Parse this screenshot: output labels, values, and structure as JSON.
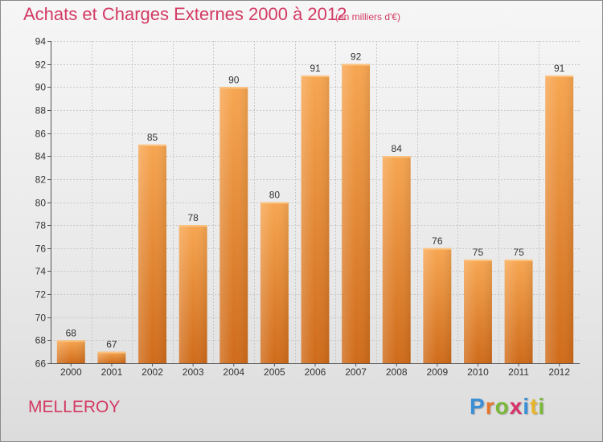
{
  "header": {
    "title": "Achats et Charges Externes 2000 à 2012",
    "subtitle": "(en milliers d'€)"
  },
  "footer": {
    "commune": "MELLEROY",
    "logo_text": "Proxiti",
    "logo_colors": [
      "#3b8fd6",
      "#e8762a",
      "#7ab83a",
      "#d6336c",
      "#3b8fd6",
      "#e8b52a",
      "#7ab83a"
    ]
  },
  "colors": {
    "accent": "#d33a63",
    "bar_top": "#f7a651",
    "bar_bottom": "#cf6b1a",
    "grid": "#c8c8c8"
  },
  "chart_data": {
    "type": "bar",
    "title": "Achats et Charges Externes 2000 à 2012",
    "subtitle": "(en milliers d'€)",
    "categories": [
      "2000",
      "2001",
      "2002",
      "2003",
      "2004",
      "2005",
      "2006",
      "2007",
      "2008",
      "2009",
      "2010",
      "2011",
      "2012"
    ],
    "values": [
      68,
      67,
      85,
      78,
      90,
      80,
      91,
      92,
      84,
      76,
      75,
      75,
      91
    ],
    "ylim": [
      66,
      94
    ],
    "yticks": [
      66,
      68,
      70,
      72,
      74,
      76,
      78,
      80,
      82,
      84,
      86,
      88,
      90,
      92,
      94
    ],
    "xlabel": "",
    "ylabel": "",
    "grid": true,
    "data_labels": true
  }
}
